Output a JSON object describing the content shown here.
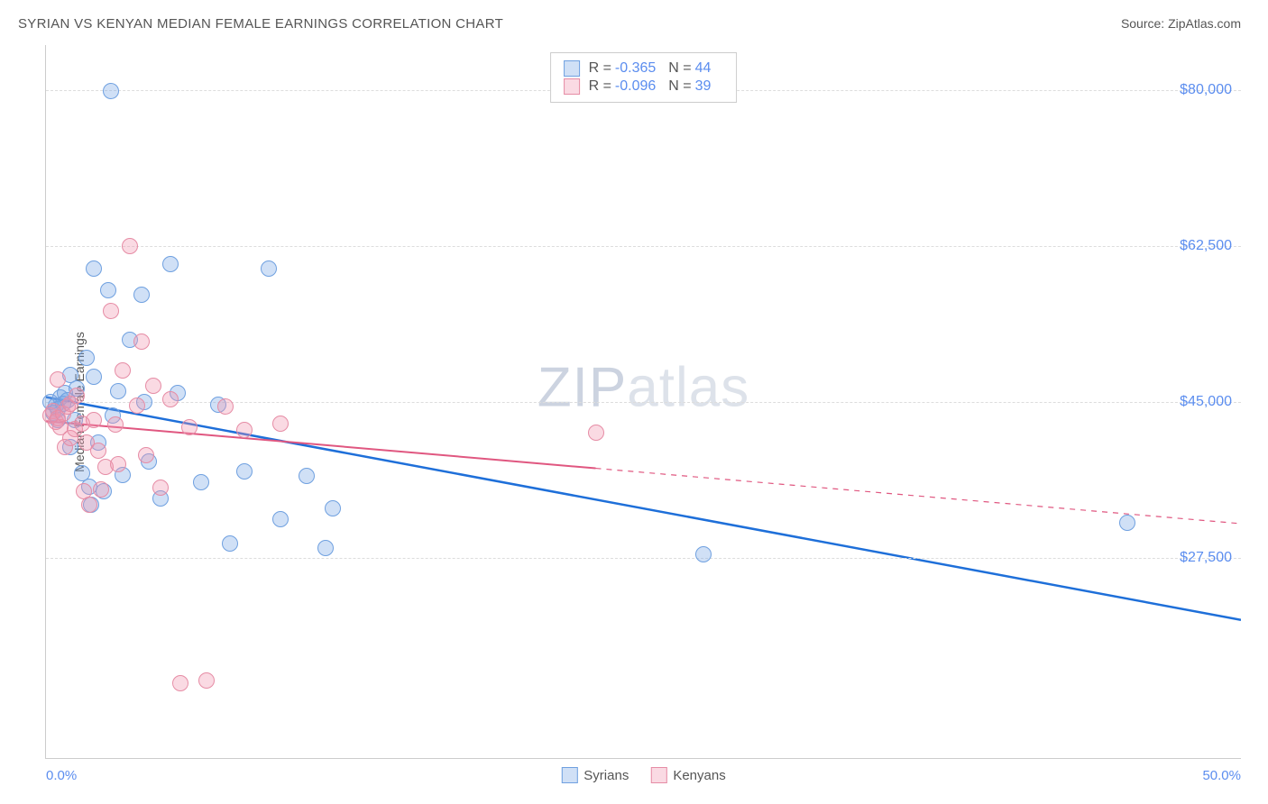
{
  "title": "SYRIAN VS KENYAN MEDIAN FEMALE EARNINGS CORRELATION CHART",
  "source_prefix": "Source: ",
  "source_name": "ZipAtlas.com",
  "ylabel": "Median Female Earnings",
  "watermark_zip": "ZIP",
  "watermark_rest": "atlas",
  "chart": {
    "type": "scatter",
    "xlim": [
      0.0,
      50.0
    ],
    "ylim": [
      5000,
      85000
    ],
    "x_min_label": "0.0%",
    "x_max_label": "50.0%",
    "yticks": [
      27500,
      45000,
      62500,
      80000
    ],
    "ytick_labels": [
      "$27,500",
      "$45,000",
      "$62,500",
      "$80,000"
    ],
    "grid_color": "#dddddd",
    "axis_color": "#cccccc",
    "background_color": "#ffffff",
    "tick_label_color": "#5b8def",
    "marker_radius": 9,
    "marker_border_width": 1.2,
    "series": [
      {
        "name": "Syrians",
        "fill": "rgba(120,165,230,0.35)",
        "stroke": "#6fa0e0",
        "line_color": "#1e6fd9",
        "line_width": 2.5,
        "R": "-0.365",
        "N": "44",
        "trend": {
          "x1": 0.0,
          "y1": 45500,
          "x2": 50.0,
          "y2": 20500,
          "dashed_from": null
        },
        "points": [
          [
            0.2,
            45000
          ],
          [
            0.3,
            43800
          ],
          [
            0.4,
            44600
          ],
          [
            0.5,
            44200
          ],
          [
            0.5,
            43000
          ],
          [
            0.6,
            45500
          ],
          [
            0.7,
            44800
          ],
          [
            0.8,
            46000
          ],
          [
            0.9,
            45200
          ],
          [
            1.0,
            48000
          ],
          [
            1.0,
            40000
          ],
          [
            1.2,
            43000
          ],
          [
            1.3,
            46500
          ],
          [
            1.5,
            37000
          ],
          [
            1.7,
            50000
          ],
          [
            1.8,
            35500
          ],
          [
            1.9,
            33500
          ],
          [
            2.0,
            60000
          ],
          [
            2.0,
            47800
          ],
          [
            2.2,
            40500
          ],
          [
            2.4,
            35000
          ],
          [
            2.6,
            57500
          ],
          [
            2.7,
            79800
          ],
          [
            2.8,
            43500
          ],
          [
            3.0,
            46200
          ],
          [
            3.2,
            36800
          ],
          [
            3.5,
            52000
          ],
          [
            4.0,
            57000
          ],
          [
            4.1,
            45000
          ],
          [
            4.3,
            38300
          ],
          [
            4.8,
            34200
          ],
          [
            5.2,
            60500
          ],
          [
            5.5,
            46000
          ],
          [
            6.5,
            36000
          ],
          [
            7.2,
            44700
          ],
          [
            7.7,
            29100
          ],
          [
            8.3,
            37200
          ],
          [
            9.3,
            60000
          ],
          [
            9.8,
            31900
          ],
          [
            10.9,
            36700
          ],
          [
            11.7,
            28600
          ],
          [
            12.0,
            33100
          ],
          [
            27.5,
            27900
          ],
          [
            45.2,
            31500
          ]
        ]
      },
      {
        "name": "Kenyans",
        "fill": "rgba(240,150,175,0.35)",
        "stroke": "#e68ca5",
        "line_color": "#e05780",
        "line_width": 2,
        "R": "-0.096",
        "N": "39",
        "trend": {
          "x1": 0.0,
          "y1": 42800,
          "x2": 50.0,
          "y2": 31300,
          "dashed_from": 23.0
        },
        "points": [
          [
            0.2,
            43500
          ],
          [
            0.3,
            44000
          ],
          [
            0.4,
            42800
          ],
          [
            0.5,
            43200
          ],
          [
            0.5,
            47500
          ],
          [
            0.6,
            42200
          ],
          [
            0.7,
            43700
          ],
          [
            0.8,
            40000
          ],
          [
            0.9,
            44500
          ],
          [
            1.0,
            41000
          ],
          [
            1.0,
            44800
          ],
          [
            1.2,
            42000
          ],
          [
            1.3,
            45700
          ],
          [
            1.5,
            42600
          ],
          [
            1.6,
            35000
          ],
          [
            1.7,
            40500
          ],
          [
            1.8,
            33500
          ],
          [
            2.0,
            43000
          ],
          [
            2.2,
            39500
          ],
          [
            2.3,
            35200
          ],
          [
            2.5,
            37700
          ],
          [
            2.7,
            55200
          ],
          [
            2.9,
            42500
          ],
          [
            3.0,
            38000
          ],
          [
            3.2,
            48500
          ],
          [
            3.5,
            62500
          ],
          [
            3.8,
            44600
          ],
          [
            4.0,
            51800
          ],
          [
            4.2,
            39000
          ],
          [
            4.5,
            46800
          ],
          [
            4.8,
            35400
          ],
          [
            5.2,
            45300
          ],
          [
            5.6,
            13500
          ],
          [
            6.0,
            42200
          ],
          [
            6.7,
            13800
          ],
          [
            7.5,
            44500
          ],
          [
            8.3,
            41900
          ],
          [
            9.8,
            42600
          ],
          [
            23.0,
            41600
          ]
        ]
      }
    ],
    "legend": {
      "series": [
        "Syrians",
        "Kenyans"
      ]
    }
  }
}
